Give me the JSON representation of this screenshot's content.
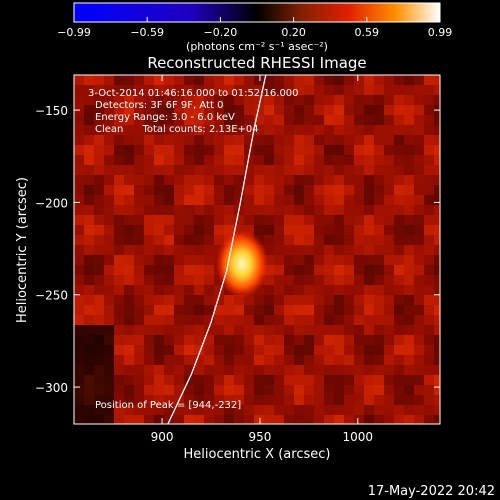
{
  "chart_data": {
    "type": "heatmap",
    "title": "Reconstructed RHESSI Image",
    "xlabel": "Heliocentric X (arcsec)",
    "ylabel": "Heliocentric Y (arcsec)",
    "xlim": [
      855,
      1042
    ],
    "ylim": [
      -320,
      -131
    ],
    "xticks": [
      900,
      950,
      1000
    ],
    "yticks": [
      -150,
      -200,
      -250,
      -300
    ],
    "peak": {
      "x": 944,
      "y": -232
    },
    "limb_curve": [
      [
        903,
        -320
      ],
      [
        915,
        -293
      ],
      [
        925,
        -265
      ],
      [
        933,
        -237
      ],
      [
        940,
        -200
      ],
      [
        947,
        -160
      ],
      [
        953,
        -131
      ]
    ],
    "annotations": [
      "3-Oct-2014 01:46:16.000 to 01:52:16.000",
      "Detectors: 3F 6F 9F, Att 0",
      "Energy Range: 3.0 - 6.0 keV",
      "Clean      Total counts: 2.13E+04"
    ],
    "peak_label": "Position of Peak = [944,-232]",
    "colorbar": {
      "ticks": [
        "-0.99",
        "-0.59",
        "-0.20",
        "0.20",
        "0.59",
        "0.99"
      ],
      "unit_label": "(photons cm⁻² s⁻¹ asec⁻²)",
      "range": [
        -0.99,
        0.99
      ]
    },
    "colors": {
      "limb": "#ffffff",
      "low": "#0000ff",
      "mid": "#000000",
      "high": "#ffffff"
    }
  },
  "footer": {
    "timestamp": "17-May-2022 20:42"
  }
}
